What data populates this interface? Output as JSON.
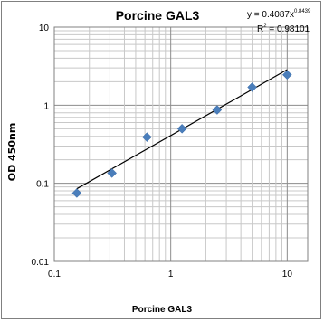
{
  "chart_data": {
    "type": "scatter",
    "title": "Porcine GAL3",
    "xlabel": "Porcine GAL3",
    "ylabel": "OD 450nm",
    "x_scale": "log",
    "y_scale": "log",
    "xlim": [
      0.1,
      15
    ],
    "ylim": [
      0.01,
      10
    ],
    "x_ticks": [
      "0.1",
      "1",
      "10"
    ],
    "y_ticks": [
      "0.01",
      "0.1",
      "1",
      "10"
    ],
    "grid": true,
    "marker_color": "#4a7ebb",
    "trendline_color": "#000000",
    "points": [
      {
        "x": 0.156,
        "y": 0.075
      },
      {
        "x": 0.3125,
        "y": 0.135
      },
      {
        "x": 0.625,
        "y": 0.39
      },
      {
        "x": 1.25,
        "y": 0.5
      },
      {
        "x": 2.5,
        "y": 0.87
      },
      {
        "x": 5,
        "y": 1.7
      },
      {
        "x": 10,
        "y": 2.45
      }
    ],
    "trendline": {
      "coefficient": 0.4087,
      "exponent": 0.8439,
      "x_range": [
        0.156,
        10
      ]
    },
    "equation": {
      "main": "y = 0.4087x",
      "exponent": "0.8439",
      "r2_label": "R",
      "r2_sup": "2",
      "r2_value": " = 0.98101"
    }
  }
}
